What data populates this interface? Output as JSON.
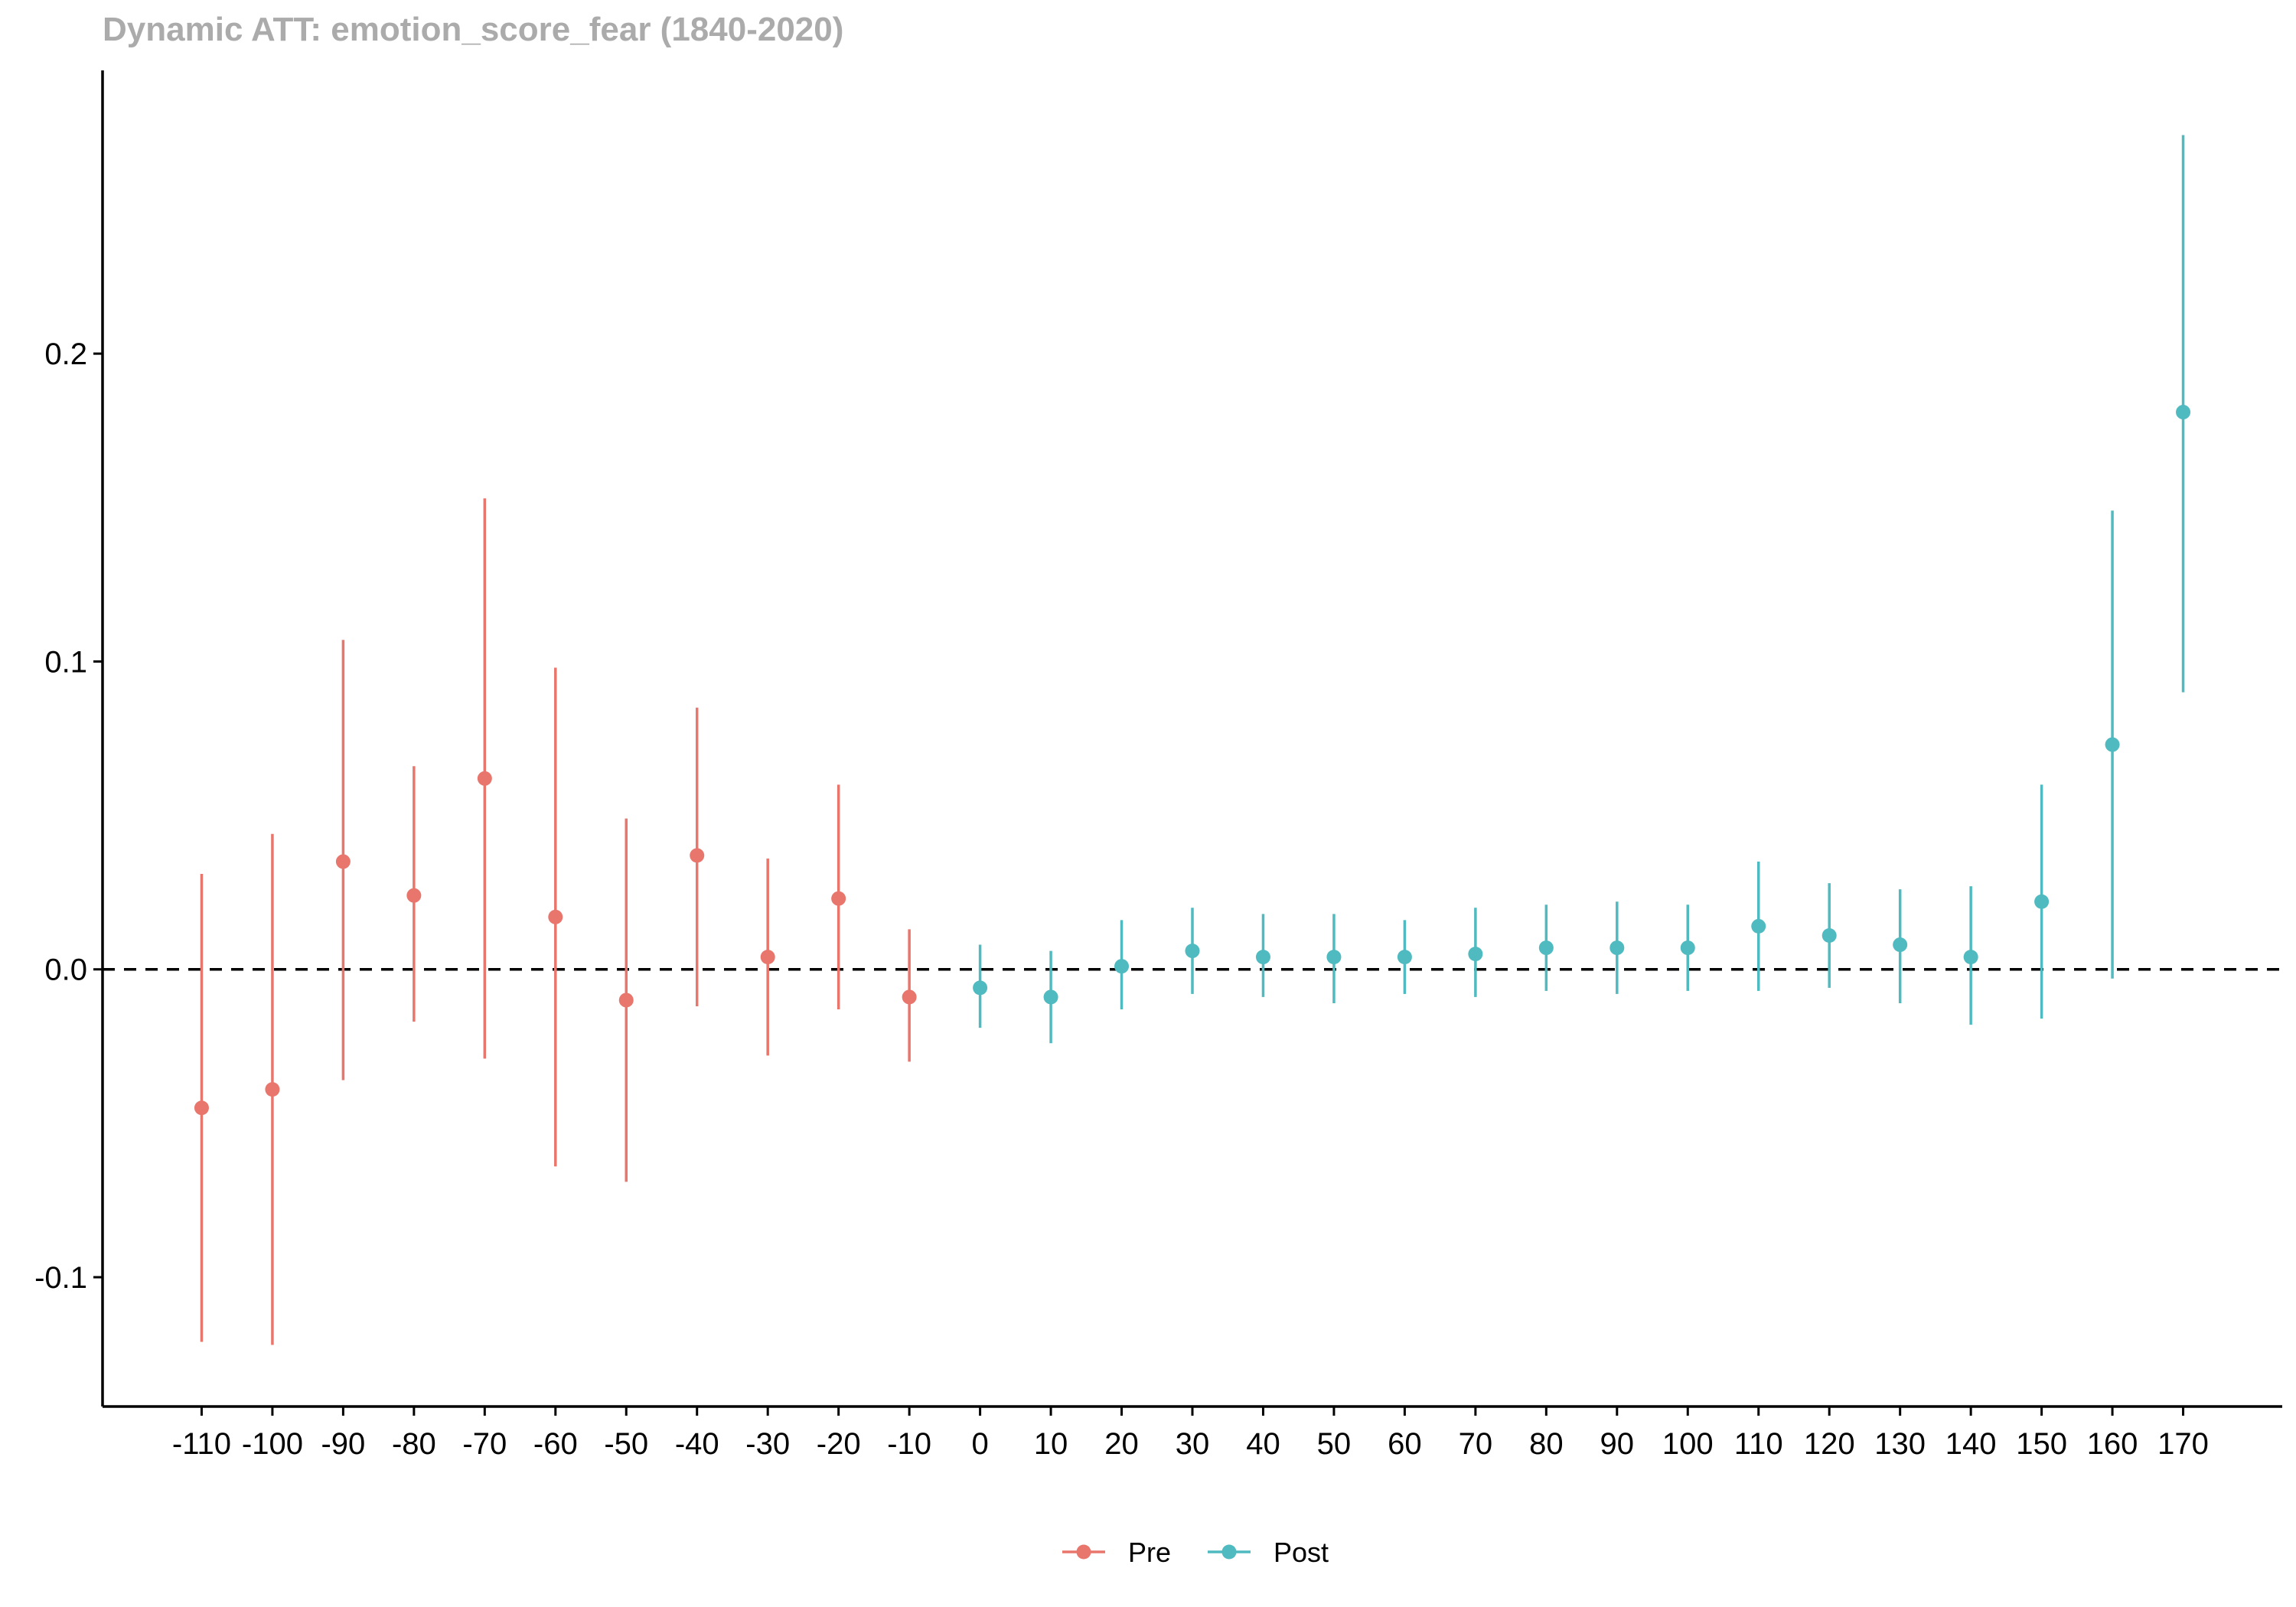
{
  "chart_data": {
    "type": "scatter",
    "title": "Dynamic ATT: emotion_score_fear (1840-2020)",
    "xlabel": "",
    "ylabel": "",
    "x_range": [
      -124,
      184
    ],
    "ylim": [
      -0.142,
      0.292
    ],
    "y_ticks": [
      -0.1,
      0.0,
      0.1,
      0.2
    ],
    "y_tick_labels": [
      "-0.1",
      "0.0",
      "0.1",
      "0.2"
    ],
    "reference_line": 0,
    "grid": false,
    "legend_position": "bottom",
    "series": [
      {
        "name": "Pre",
        "color": "#E8766D",
        "points": [
          {
            "x": -110,
            "y": -0.045,
            "lo": -0.121,
            "hi": 0.031
          },
          {
            "x": -100,
            "y": -0.039,
            "lo": -0.122,
            "hi": 0.044
          },
          {
            "x": -90,
            "y": 0.035,
            "lo": -0.036,
            "hi": 0.107
          },
          {
            "x": -80,
            "y": 0.024,
            "lo": -0.017,
            "hi": 0.066
          },
          {
            "x": -70,
            "y": 0.062,
            "lo": -0.029,
            "hi": 0.153
          },
          {
            "x": -60,
            "y": 0.017,
            "lo": -0.064,
            "hi": 0.098
          },
          {
            "x": -50,
            "y": -0.01,
            "lo": -0.069,
            "hi": 0.049
          },
          {
            "x": -40,
            "y": 0.037,
            "lo": -0.012,
            "hi": 0.085
          },
          {
            "x": -30,
            "y": 0.004,
            "lo": -0.028,
            "hi": 0.036
          },
          {
            "x": -20,
            "y": 0.023,
            "lo": -0.013,
            "hi": 0.06
          },
          {
            "x": -10,
            "y": -0.009,
            "lo": -0.03,
            "hi": 0.013
          }
        ]
      },
      {
        "name": "Post",
        "color": "#4FBAC0",
        "points": [
          {
            "x": 0,
            "y": -0.006,
            "lo": -0.019,
            "hi": 0.008
          },
          {
            "x": 10,
            "y": -0.009,
            "lo": -0.024,
            "hi": 0.006
          },
          {
            "x": 20,
            "y": 0.001,
            "lo": -0.013,
            "hi": 0.016
          },
          {
            "x": 30,
            "y": 0.006,
            "lo": -0.008,
            "hi": 0.02
          },
          {
            "x": 40,
            "y": 0.004,
            "lo": -0.009,
            "hi": 0.018
          },
          {
            "x": 50,
            "y": 0.004,
            "lo": -0.011,
            "hi": 0.018
          },
          {
            "x": 60,
            "y": 0.004,
            "lo": -0.008,
            "hi": 0.016
          },
          {
            "x": 70,
            "y": 0.005,
            "lo": -0.009,
            "hi": 0.02
          },
          {
            "x": 80,
            "y": 0.007,
            "lo": -0.007,
            "hi": 0.021
          },
          {
            "x": 90,
            "y": 0.007,
            "lo": -0.008,
            "hi": 0.022
          },
          {
            "x": 100,
            "y": 0.007,
            "lo": -0.007,
            "hi": 0.021
          },
          {
            "x": 110,
            "y": 0.014,
            "lo": -0.007,
            "hi": 0.035
          },
          {
            "x": 120,
            "y": 0.011,
            "lo": -0.006,
            "hi": 0.028
          },
          {
            "x": 130,
            "y": 0.008,
            "lo": -0.011,
            "hi": 0.026
          },
          {
            "x": 140,
            "y": 0.004,
            "lo": -0.018,
            "hi": 0.027
          },
          {
            "x": 150,
            "y": 0.022,
            "lo": -0.016,
            "hi": 0.06
          },
          {
            "x": 160,
            "y": 0.073,
            "lo": -0.003,
            "hi": 0.149
          },
          {
            "x": 170,
            "y": 0.181,
            "lo": 0.09,
            "hi": 0.271
          }
        ]
      }
    ]
  }
}
